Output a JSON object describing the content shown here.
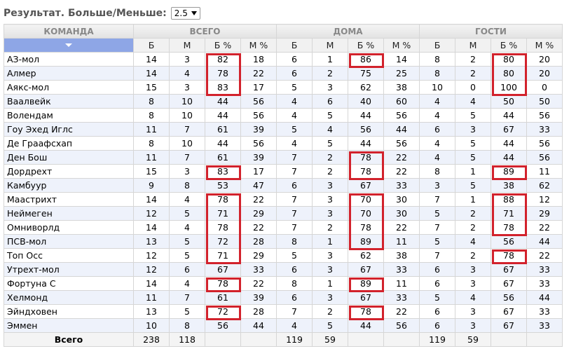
{
  "filter": {
    "label": "Результат. Больше/Меньше:",
    "value": "2.5"
  },
  "table": {
    "group_headers": [
      "КОМАНДА",
      "ВСЕГО",
      "ДОМА",
      "ГОСТИ"
    ],
    "sub_headers": [
      "Б",
      "М",
      "Б %",
      "М %"
    ],
    "rows": [
      [
        "АЗ-мол",
        14,
        3,
        82,
        18,
        6,
        1,
        86,
        14,
        8,
        2,
        80,
        20
      ],
      [
        "Алмер",
        14,
        4,
        78,
        22,
        6,
        2,
        75,
        25,
        8,
        2,
        80,
        20
      ],
      [
        "Аякс-мол",
        15,
        3,
        83,
        17,
        5,
        3,
        62,
        38,
        10,
        0,
        100,
        0
      ],
      [
        "Ваалвейк",
        8,
        10,
        44,
        56,
        4,
        6,
        40,
        60,
        4,
        4,
        50,
        50
      ],
      [
        "Волендам",
        8,
        10,
        44,
        56,
        4,
        5,
        44,
        56,
        4,
        5,
        44,
        56
      ],
      [
        "Гоу Эхед Иглс",
        11,
        7,
        61,
        39,
        5,
        4,
        56,
        44,
        6,
        3,
        67,
        33
      ],
      [
        "Де Граафсхап",
        8,
        10,
        44,
        56,
        4,
        5,
        44,
        56,
        4,
        5,
        44,
        56
      ],
      [
        "Ден Бош",
        11,
        7,
        61,
        39,
        7,
        2,
        78,
        22,
        4,
        5,
        44,
        56
      ],
      [
        "Дордрехт",
        15,
        3,
        83,
        17,
        7,
        2,
        78,
        22,
        8,
        1,
        89,
        11
      ],
      [
        "Камбуур",
        9,
        8,
        53,
        47,
        6,
        3,
        67,
        33,
        3,
        5,
        38,
        62
      ],
      [
        "Маастрихт",
        14,
        4,
        78,
        22,
        7,
        3,
        70,
        30,
        7,
        1,
        88,
        12
      ],
      [
        "Неймеген",
        12,
        5,
        71,
        29,
        7,
        3,
        70,
        30,
        5,
        2,
        71,
        29
      ],
      [
        "Омниворлд",
        14,
        4,
        78,
        22,
        7,
        2,
        78,
        22,
        7,
        2,
        78,
        22
      ],
      [
        "ПСВ-мол",
        13,
        5,
        72,
        28,
        8,
        1,
        89,
        11,
        5,
        4,
        56,
        44
      ],
      [
        "Топ Осс",
        12,
        5,
        71,
        29,
        5,
        3,
        62,
        38,
        7,
        2,
        78,
        22
      ],
      [
        "Утрехт-мол",
        12,
        6,
        67,
        33,
        6,
        3,
        67,
        33,
        6,
        3,
        67,
        33
      ],
      [
        "Фортуна С",
        14,
        4,
        78,
        22,
        8,
        1,
        89,
        11,
        6,
        3,
        67,
        33
      ],
      [
        "Хелмонд",
        11,
        7,
        61,
        39,
        6,
        3,
        67,
        33,
        5,
        4,
        56,
        44
      ],
      [
        "Эйндховен",
        13,
        5,
        72,
        28,
        7,
        2,
        78,
        22,
        6,
        3,
        67,
        33
      ],
      [
        "Эммен",
        10,
        8,
        56,
        44,
        4,
        5,
        44,
        56,
        6,
        3,
        67,
        33
      ]
    ],
    "total": {
      "label": "Всего",
      "groups": [
        [
          238,
          118
        ],
        [
          119,
          59
        ],
        [
          119,
          59
        ]
      ]
    }
  }
}
